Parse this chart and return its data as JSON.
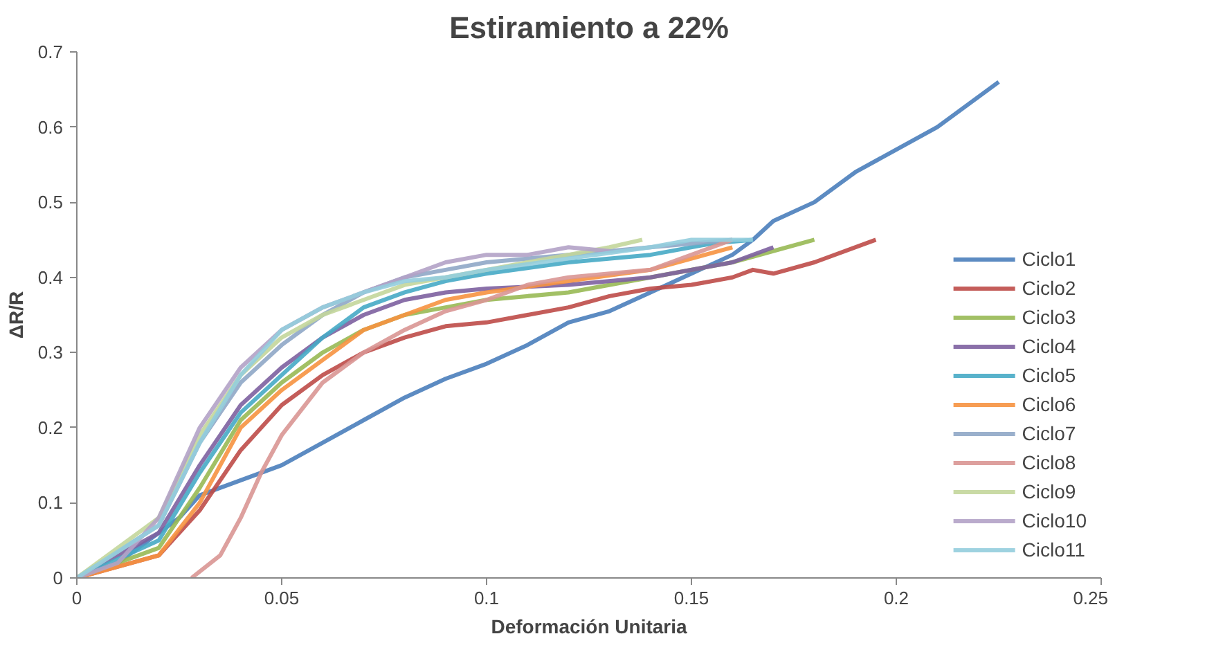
{
  "chart_data": {
    "type": "line",
    "title": "Estiramiento a 22%",
    "xlabel": "Deformación Unitaria",
    "ylabel": "ΔR/R",
    "xlim": [
      0,
      0.25
    ],
    "xticks": [
      0,
      0.05,
      0.1,
      0.15,
      0.2,
      0.25
    ],
    "ylim": [
      0,
      0.7
    ],
    "yticks": [
      0,
      0.1,
      0.2,
      0.3,
      0.4,
      0.5,
      0.6,
      0.7
    ],
    "grid": false,
    "legend": "bottom right",
    "marker": "none",
    "line_style": "solid",
    "series": [
      {
        "name": "Ciclo1",
        "color": "#4a7ebb",
        "x": [
          0,
          0.01,
          0.02,
          0.025,
          0.03,
          0.04,
          0.05,
          0.06,
          0.07,
          0.08,
          0.09,
          0.1,
          0.11,
          0.12,
          0.13,
          0.14,
          0.15,
          0.16,
          0.165,
          0.17,
          0.18,
          0.19,
          0.2,
          0.21,
          0.225
        ],
        "values": [
          0,
          0.02,
          0.06,
          0.08,
          0.11,
          0.13,
          0.15,
          0.18,
          0.21,
          0.24,
          0.265,
          0.285,
          0.31,
          0.34,
          0.355,
          0.38,
          0.405,
          0.43,
          0.45,
          0.475,
          0.5,
          0.54,
          0.57,
          0.6,
          0.66
        ]
      },
      {
        "name": "Ciclo2",
        "color": "#be4b48",
        "x": [
          0,
          0.02,
          0.03,
          0.04,
          0.05,
          0.06,
          0.07,
          0.08,
          0.09,
          0.1,
          0.11,
          0.12,
          0.13,
          0.14,
          0.15,
          0.16,
          0.165,
          0.17,
          0.18,
          0.195
        ],
        "values": [
          0,
          0.03,
          0.09,
          0.17,
          0.23,
          0.27,
          0.3,
          0.32,
          0.335,
          0.34,
          0.35,
          0.36,
          0.375,
          0.385,
          0.39,
          0.4,
          0.41,
          0.405,
          0.42,
          0.45
        ]
      },
      {
        "name": "Ciclo3",
        "color": "#98b954",
        "x": [
          0,
          0.02,
          0.03,
          0.04,
          0.05,
          0.06,
          0.07,
          0.08,
          0.09,
          0.1,
          0.12,
          0.14,
          0.16,
          0.18
        ],
        "values": [
          0,
          0.04,
          0.12,
          0.21,
          0.26,
          0.3,
          0.33,
          0.35,
          0.36,
          0.37,
          0.38,
          0.4,
          0.42,
          0.45
        ]
      },
      {
        "name": "Ciclo4",
        "color": "#7d60a0",
        "x": [
          0,
          0.02,
          0.03,
          0.04,
          0.05,
          0.06,
          0.07,
          0.08,
          0.09,
          0.1,
          0.12,
          0.14,
          0.16,
          0.17
        ],
        "values": [
          0,
          0.06,
          0.15,
          0.23,
          0.28,
          0.32,
          0.35,
          0.37,
          0.38,
          0.385,
          0.39,
          0.4,
          0.42,
          0.44
        ]
      },
      {
        "name": "Ciclo5",
        "color": "#46aac5",
        "x": [
          0,
          0.02,
          0.03,
          0.04,
          0.05,
          0.06,
          0.07,
          0.08,
          0.09,
          0.1,
          0.12,
          0.14,
          0.155,
          0.165
        ],
        "values": [
          0,
          0.05,
          0.14,
          0.22,
          0.27,
          0.32,
          0.36,
          0.38,
          0.395,
          0.405,
          0.42,
          0.43,
          0.445,
          0.45
        ]
      },
      {
        "name": "Ciclo6",
        "color": "#f69240",
        "x": [
          0,
          0.02,
          0.03,
          0.04,
          0.05,
          0.06,
          0.07,
          0.08,
          0.09,
          0.1,
          0.12,
          0.14,
          0.16
        ],
        "values": [
          0,
          0.03,
          0.1,
          0.2,
          0.25,
          0.29,
          0.33,
          0.35,
          0.37,
          0.38,
          0.395,
          0.41,
          0.44
        ]
      },
      {
        "name": "Ciclo7",
        "color": "#8fa7c7",
        "x": [
          0,
          0.02,
          0.03,
          0.04,
          0.05,
          0.06,
          0.07,
          0.08,
          0.09,
          0.1,
          0.12,
          0.14,
          0.16
        ],
        "values": [
          0,
          0.07,
          0.18,
          0.26,
          0.31,
          0.35,
          0.38,
          0.4,
          0.41,
          0.42,
          0.43,
          0.44,
          0.45
        ]
      },
      {
        "name": "Ciclo8",
        "color": "#d99694",
        "x": [
          0.028,
          0.035,
          0.04,
          0.045,
          0.05,
          0.06,
          0.07,
          0.08,
          0.09,
          0.1,
          0.11,
          0.12,
          0.14,
          0.15,
          0.16
        ],
        "values": [
          0,
          0.03,
          0.08,
          0.14,
          0.19,
          0.26,
          0.3,
          0.33,
          0.355,
          0.37,
          0.39,
          0.4,
          0.41,
          0.43,
          0.45
        ]
      },
      {
        "name": "Ciclo9",
        "color": "#c3d69b",
        "x": [
          0,
          0.02,
          0.03,
          0.04,
          0.05,
          0.06,
          0.07,
          0.08,
          0.09,
          0.1,
          0.12,
          0.13,
          0.138
        ],
        "values": [
          0,
          0.08,
          0.19,
          0.27,
          0.32,
          0.35,
          0.37,
          0.39,
          0.4,
          0.41,
          0.43,
          0.44,
          0.45
        ]
      },
      {
        "name": "Ciclo10",
        "color": "#b3a2c7",
        "x": [
          0,
          0.01,
          0.02,
          0.03,
          0.04,
          0.05,
          0.06,
          0.07,
          0.08,
          0.09,
          0.1,
          0.11,
          0.12,
          0.13
        ],
        "values": [
          0,
          0.02,
          0.08,
          0.2,
          0.28,
          0.33,
          0.36,
          0.38,
          0.4,
          0.42,
          0.43,
          0.43,
          0.44,
          0.435
        ]
      },
      {
        "name": "Ciclo11",
        "color": "#93cddd",
        "x": [
          0,
          0.02,
          0.03,
          0.04,
          0.05,
          0.06,
          0.07,
          0.08,
          0.09,
          0.1,
          0.12,
          0.14,
          0.15,
          0.165
        ],
        "values": [
          0,
          0.07,
          0.18,
          0.27,
          0.33,
          0.36,
          0.38,
          0.395,
          0.4,
          0.41,
          0.425,
          0.44,
          0.45,
          0.45
        ]
      }
    ]
  }
}
